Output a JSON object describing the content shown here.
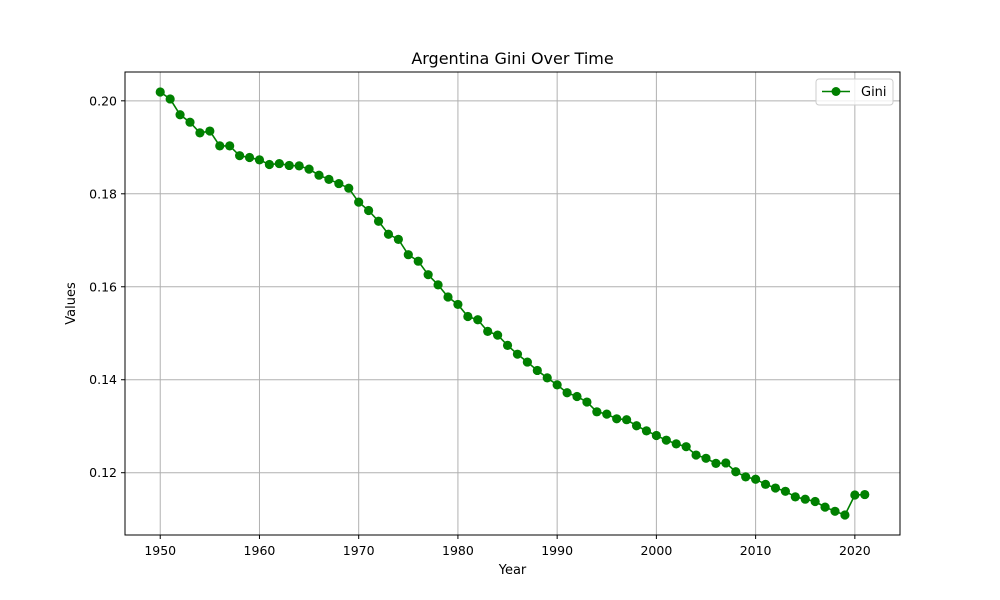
{
  "chart_data": {
    "type": "line",
    "title": "Argentina Gini Over Time",
    "xlabel": "Year",
    "ylabel": "Values",
    "xlim": [
      1946.45,
      2024.55
    ],
    "ylim": [
      0.1066,
      0.2062
    ],
    "xticks": [
      1950,
      1960,
      1970,
      1980,
      1990,
      2000,
      2010,
      2020
    ],
    "yticks": [
      0.12,
      0.14,
      0.16,
      0.18,
      0.2
    ],
    "ytick_labels": [
      "0.12",
      "0.14",
      "0.16",
      "0.18",
      "0.20"
    ],
    "grid": true,
    "legend": "top-right",
    "series": [
      {
        "name": "Gini",
        "color": "#008000",
        "marker": "circle",
        "x": [
          1950,
          1951,
          1952,
          1953,
          1954,
          1955,
          1956,
          1957,
          1958,
          1959,
          1960,
          1961,
          1962,
          1963,
          1964,
          1965,
          1966,
          1967,
          1968,
          1969,
          1970,
          1971,
          1972,
          1973,
          1974,
          1975,
          1976,
          1977,
          1978,
          1979,
          1980,
          1981,
          1982,
          1983,
          1984,
          1985,
          1986,
          1987,
          1988,
          1989,
          1990,
          1991,
          1992,
          1993,
          1994,
          1995,
          1996,
          1997,
          1998,
          1999,
          2000,
          2001,
          2002,
          2003,
          2004,
          2005,
          2006,
          2007,
          2008,
          2009,
          2010,
          2011,
          2012,
          2013,
          2014,
          2015,
          2016,
          2017,
          2018,
          2019,
          2020,
          2021
        ],
        "y": [
          0.2019,
          0.2004,
          0.197,
          0.1954,
          0.1931,
          0.1935,
          0.1903,
          0.1903,
          0.1882,
          0.1878,
          0.1873,
          0.1863,
          0.1865,
          0.1861,
          0.186,
          0.1853,
          0.184,
          0.1831,
          0.1822,
          0.1812,
          0.1782,
          0.1764,
          0.1741,
          0.1713,
          0.1702,
          0.1669,
          0.1655,
          0.1626,
          0.1604,
          0.1578,
          0.1562,
          0.1536,
          0.1529,
          0.1504,
          0.1496,
          0.1474,
          0.1455,
          0.1438,
          0.142,
          0.1404,
          0.1389,
          0.1372,
          0.1364,
          0.1352,
          0.1331,
          0.1326,
          0.1316,
          0.1314,
          0.1301,
          0.129,
          0.128,
          0.127,
          0.1262,
          0.1256,
          0.1238,
          0.1231,
          0.122,
          0.1221,
          0.1202,
          0.1191,
          0.1186,
          0.1175,
          0.1167,
          0.116,
          0.1148,
          0.1143,
          0.1138,
          0.1126,
          0.1117,
          0.1109,
          0.1152,
          0.1153
        ]
      }
    ]
  }
}
